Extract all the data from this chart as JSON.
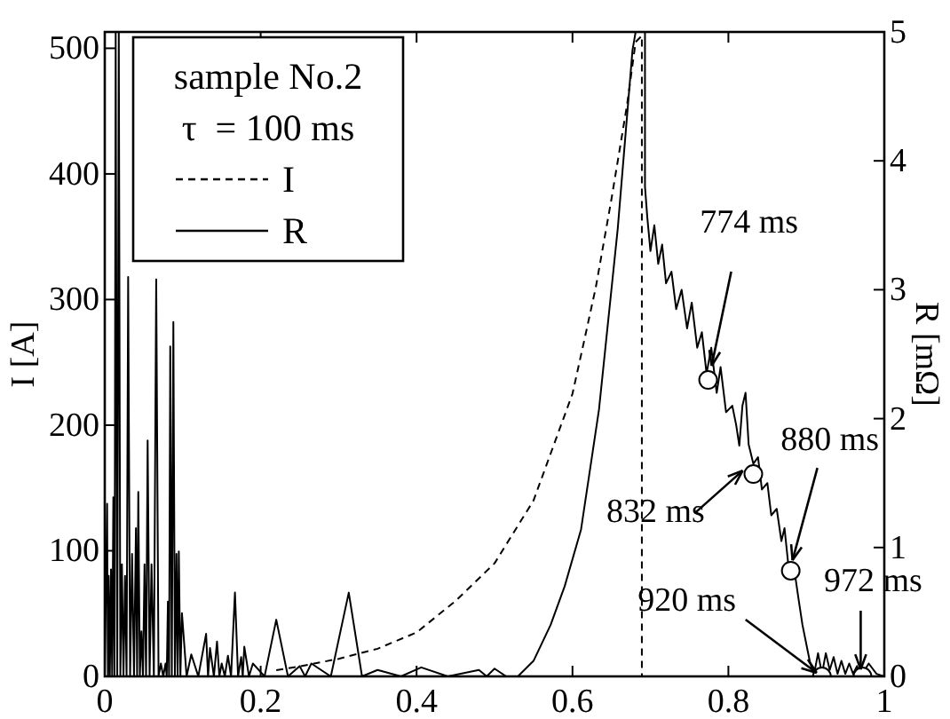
{
  "chart_data": {
    "type": "line",
    "xlim": [
      0,
      1
    ],
    "xticks": [
      0,
      0.2,
      0.4,
      0.6,
      0.8,
      1
    ],
    "ylim": [
      0,
      513
    ],
    "yticks": [
      0,
      100,
      200,
      300,
      400,
      500
    ],
    "y2lim": [
      0,
      5
    ],
    "y2ticks": [
      0,
      1,
      2,
      3,
      4,
      5
    ],
    "ylabel": "I [A]",
    "y2label": "R [mΩ]",
    "legend": "top left",
    "legend_title": "sample No.2",
    "grid": false,
    "series": [
      {
        "name": "I",
        "color": "#000000",
        "line_style": "dashed",
        "axis": "y",
        "x": [
          0.22,
          0.25,
          0.3,
          0.35,
          0.4,
          0.45,
          0.5,
          0.55,
          0.6,
          0.616,
          0.63,
          0.65,
          0.67,
          0.681,
          0.689,
          0.689
        ],
        "values": [
          5,
          8,
          14,
          22,
          35,
          60,
          90,
          140,
          225,
          270,
          310,
          380,
          455,
          505,
          510,
          0
        ]
      },
      {
        "name": "R",
        "color": "#000000",
        "line_style": "solid",
        "axis": "y2",
        "x": [
          0,
          0.003,
          0.004,
          0.005,
          0.0065,
          0.008,
          0.0095,
          0.011,
          0.0125,
          0.014,
          0.016,
          0.018,
          0.02,
          0.022,
          0.024,
          0.026,
          0.028,
          0.03,
          0.0325,
          0.035,
          0.0375,
          0.04,
          0.0415,
          0.043,
          0.045,
          0.047,
          0.049,
          0.051,
          0.053,
          0.055,
          0.0575,
          0.06,
          0.063,
          0.066,
          0.069,
          0.072,
          0.075,
          0.078,
          0.0795,
          0.081,
          0.0825,
          0.084,
          0.086,
          0.088,
          0.09,
          0.092,
          0.0935,
          0.095,
          0.097,
          0.099,
          0.105,
          0.111,
          0.12,
          0.13,
          0.1325,
          0.135,
          0.14,
          0.144,
          0.147,
          0.15,
          0.154,
          0.158,
          0.162,
          0.167,
          0.171,
          0.175,
          0.177,
          0.179,
          0.185,
          0.19,
          0.205,
          0.22,
          0.235,
          0.25,
          0.257,
          0.265,
          0.29,
          0.313,
          0.33,
          0.35,
          0.38,
          0.406,
          0.44,
          0.48,
          0.49,
          0.5,
          0.515,
          0.53,
          0.55,
          0.572,
          0.59,
          0.611,
          0.634,
          0.658,
          0.677,
          0.681,
          0.693,
          0.693,
          0.696,
          0.7,
          0.705,
          0.71,
          0.715,
          0.72,
          0.727,
          0.733,
          0.74,
          0.747,
          0.753,
          0.76,
          0.766,
          0.772,
          0.778,
          0.785,
          0.79,
          0.797,
          0.805,
          0.81,
          0.814,
          0.818,
          0.822,
          0.826,
          0.832,
          0.838,
          0.843,
          0.85,
          0.855,
          0.862,
          0.868,
          0.872,
          0.878,
          0.884,
          0.89,
          0.895,
          0.9,
          0.905,
          0.91,
          0.915,
          0.92,
          0.925,
          0.93,
          0.935,
          0.94,
          0.945,
          0.95,
          0.955,
          0.96,
          0.965,
          0.97,
          0.98,
          0.99,
          1
        ],
        "values": [
          0,
          1.34,
          0,
          0.78,
          0,
          0.83,
          0,
          1.39,
          0,
          5,
          0,
          5,
          0,
          0.87,
          0,
          0.78,
          0,
          3.1,
          0,
          0.95,
          0,
          1.15,
          0,
          1.43,
          0,
          0.35,
          0,
          0.87,
          0,
          1.83,
          0,
          0.87,
          0,
          3.08,
          0,
          0.1,
          0,
          0.1,
          0,
          0.58,
          0,
          2.56,
          0,
          2.75,
          0,
          0.95,
          0,
          0.97,
          0,
          0.49,
          0,
          0.17,
          0,
          0.33,
          0,
          0.22,
          0,
          0.27,
          0,
          0.1,
          0,
          0.16,
          0,
          0.65,
          0,
          0.15,
          0,
          0.23,
          0,
          0.1,
          0,
          0.44,
          0,
          0.08,
          0,
          0.1,
          0,
          0.65,
          0,
          0.05,
          0,
          0.07,
          0,
          0.05,
          0,
          0.06,
          0,
          0,
          0.12,
          0.4,
          0.7,
          1.14,
          2.07,
          3.47,
          4.86,
          5,
          5,
          3.8,
          3.56,
          3.3,
          3.5,
          3.2,
          3.35,
          3.05,
          3.14,
          2.85,
          3,
          2.7,
          2.9,
          2.55,
          2.67,
          2.35,
          2.55,
          2.2,
          2.4,
          2.05,
          2.1,
          1.95,
          1.79,
          2.1,
          2.2,
          1.8,
          1.65,
          1.7,
          1.45,
          1.5,
          1.25,
          1.3,
          1.05,
          1.15,
          0.8,
          0.85,
          0.6,
          0.4,
          0.25,
          0.1,
          0.02,
          0.18,
          0.02,
          0.18,
          0.05,
          0.15,
          0.02,
          0.12,
          0.02,
          0.1,
          0.02,
          0.08,
          0,
          0.1,
          0.02,
          0
        ]
      },
      {
        "type": "scatter",
        "marker": "circle",
        "color": "#ffffff",
        "axis": "y2",
        "x": [
          0.774,
          0.832,
          0.88,
          0.92,
          0.972
        ],
        "values": [
          2.3,
          1.57,
          0.82,
          0,
          0
        ]
      }
    ],
    "annotations": [
      "τ  = 100 ms",
      {
        "text": "774 ms",
        "x": 0.774,
        "y": 236
      },
      {
        "text": "832 ms",
        "x": 0.832,
        "y": 161
      },
      {
        "text": "880 ms",
        "x": 0.88,
        "y": 84
      },
      {
        "text": "920 ms",
        "x": 0.92,
        "y": 0
      },
      {
        "text": "972 ms",
        "x": 0.972,
        "y": 0
      }
    ]
  }
}
